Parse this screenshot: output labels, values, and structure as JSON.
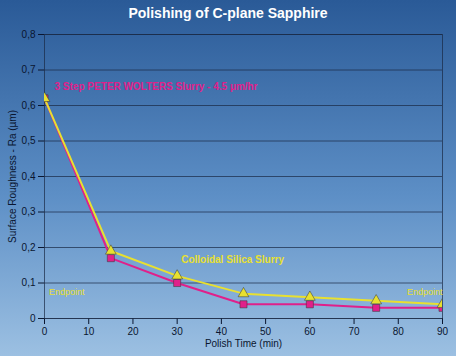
{
  "chart_data": {
    "type": "line",
    "title": "Polishing of C-plane Sapphire",
    "x_label": "Polish Time (min)",
    "y_label": "Surface Roughness - Ra (µm)",
    "x": [
      0,
      15,
      30,
      45,
      60,
      75,
      90
    ],
    "series": [
      {
        "name": "3 Step PETER WOLTERS Slurry - 4.5 µm/hr",
        "color": "#e0208a",
        "marker": "square",
        "values": [
          0.62,
          0.17,
          0.1,
          0.04,
          0.04,
          0.03,
          0.03
        ]
      },
      {
        "name": "Colloidal Silica Slurry",
        "color": "#e8e030",
        "marker": "triangle",
        "values": [
          0.62,
          0.19,
          0.12,
          0.07,
          0.06,
          0.05,
          0.04
        ]
      }
    ],
    "annotations": [
      {
        "text": "Endpoint",
        "x": 1,
        "y": 0.075
      },
      {
        "text": "Endpoint",
        "x": 90,
        "y": 0.075
      }
    ],
    "xlim": [
      0,
      90
    ],
    "xticks": [
      0,
      10,
      20,
      30,
      40,
      50,
      60,
      70,
      80,
      90
    ],
    "ylim": [
      0,
      0.8
    ],
    "yticks": [
      0,
      {
        "value": 0.1,
        "label": "0,1"
      },
      {
        "value": 0.2,
        "label": "0,2"
      },
      {
        "value": 0.3,
        "label": "0,3"
      },
      {
        "value": 0.4,
        "label": "0,4"
      },
      {
        "value": 0.5,
        "label": "0,5"
      },
      {
        "value": 0.6,
        "label": "0,6"
      },
      {
        "value": 0.7,
        "label": "0,7"
      },
      {
        "value": 0.8,
        "label": "0,8"
      }
    ],
    "grid": true
  }
}
